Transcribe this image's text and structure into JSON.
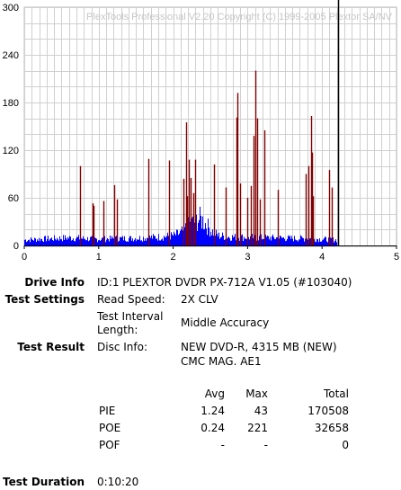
{
  "chart_data": {
    "type": "bar",
    "watermark": "PlexTools Professional V2.20 Copyright (C) 1999-2005 Plextor SA/NV",
    "xlim": [
      0,
      5
    ],
    "ylim": [
      0,
      300
    ],
    "x_ticks": [
      0,
      1,
      2,
      3,
      4,
      5
    ],
    "y_ticks": [
      0,
      60,
      120,
      180,
      240,
      300
    ],
    "grid": true,
    "series": [
      {
        "color": "#0000ff",
        "style": "dense-area",
        "points": [
          [
            0,
            8
          ],
          [
            0.2,
            9
          ],
          [
            0.4,
            10
          ],
          [
            0.6,
            11
          ],
          [
            0.8,
            10
          ],
          [
            1.0,
            9
          ],
          [
            1.2,
            10
          ],
          [
            1.4,
            10
          ],
          [
            1.6,
            11
          ],
          [
            1.8,
            12
          ],
          [
            2.0,
            14
          ],
          [
            2.1,
            18
          ],
          [
            2.2,
            28
          ],
          [
            2.3,
            36
          ],
          [
            2.35,
            38
          ],
          [
            2.4,
            35
          ],
          [
            2.5,
            22
          ],
          [
            2.6,
            14
          ],
          [
            2.8,
            12
          ],
          [
            3.0,
            12
          ],
          [
            3.2,
            11
          ],
          [
            3.4,
            11
          ],
          [
            3.6,
            10
          ],
          [
            3.8,
            10
          ],
          [
            4.0,
            9
          ],
          [
            4.2,
            8
          ]
        ]
      },
      {
        "color": "#800000",
        "style": "spikes",
        "points": [
          [
            0.75,
            100
          ],
          [
            0.92,
            53
          ],
          [
            0.93,
            50
          ],
          [
            1.06,
            56
          ],
          [
            1.21,
            76
          ],
          [
            1.24,
            58
          ],
          [
            1.67,
            109
          ],
          [
            1.95,
            107
          ],
          [
            2.14,
            84
          ],
          [
            2.17,
            155
          ],
          [
            2.19,
            62
          ],
          [
            2.21,
            108
          ],
          [
            2.23,
            85
          ],
          [
            2.27,
            66
          ],
          [
            2.3,
            108
          ],
          [
            2.55,
            102
          ],
          [
            2.7,
            73
          ],
          [
            2.85,
            161
          ],
          [
            2.86,
            192
          ],
          [
            2.9,
            78
          ],
          [
            3.0,
            60
          ],
          [
            3.04,
            75
          ],
          [
            3.08,
            138
          ],
          [
            3.1,
            220
          ],
          [
            3.13,
            160
          ],
          [
            3.16,
            58
          ],
          [
            3.23,
            145
          ],
          [
            3.4,
            70
          ],
          [
            3.78,
            90
          ],
          [
            3.82,
            100
          ],
          [
            3.85,
            163
          ],
          [
            3.86,
            117
          ],
          [
            3.88,
            62
          ],
          [
            4.09,
            95
          ],
          [
            4.13,
            73
          ]
        ]
      }
    ],
    "marker_x": 4.215
  },
  "info": {
    "drive_label": "Drive Info",
    "drive_value": "ID:1 PLEXTOR DVDR PX-712A V1.05 (#103040)",
    "settings_label": "Test Settings",
    "read_speed_label": "Read Speed:",
    "read_speed_value": "2X CLV",
    "interval_label_1": "Test Interval",
    "interval_label_2": "Length:",
    "interval_value": "Middle Accuracy",
    "result_label": "Test Result",
    "disc_info_label": "Disc Info:",
    "disc_info_line1": "NEW DVD-R, 4315 MB (NEW)",
    "disc_info_line2": "CMC MAG. AE1",
    "duration_label": "Test Duration",
    "duration_value": "0:10:20"
  },
  "stats": {
    "headers": [
      "Avg",
      "Max",
      "Total"
    ],
    "rows": [
      {
        "name": "PIE",
        "avg": "1.24",
        "max": "43",
        "total": "170508"
      },
      {
        "name": "POE",
        "avg": "0.24",
        "max": "221",
        "total": "32658"
      },
      {
        "name": "POF",
        "avg": "-",
        "max": "-",
        "total": "0"
      }
    ]
  }
}
